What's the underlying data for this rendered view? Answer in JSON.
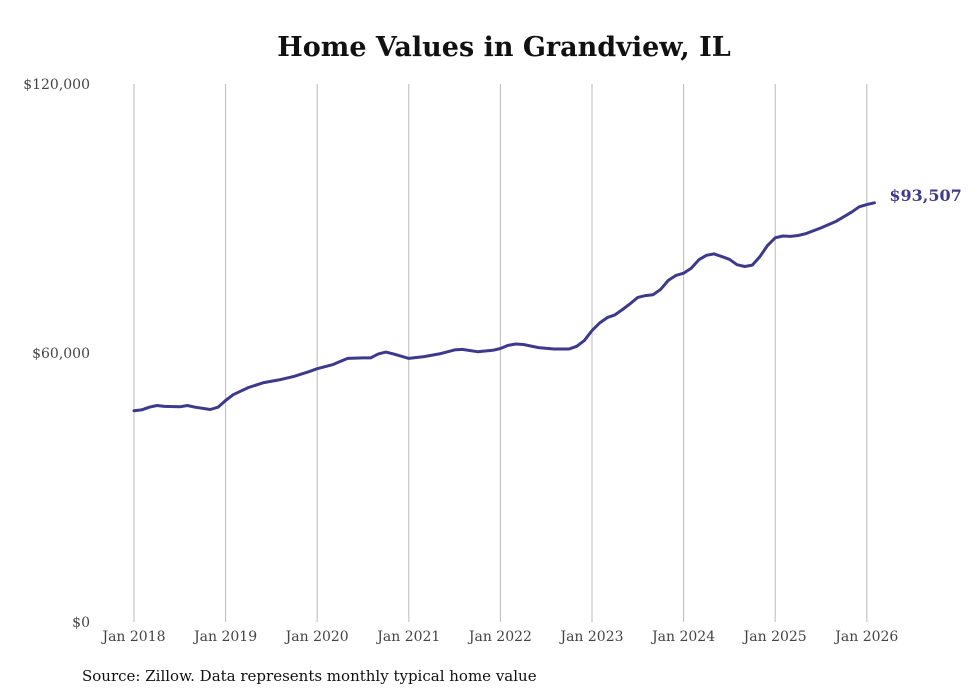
{
  "chart_data": {
    "type": "line",
    "title": "Home Values in Grandview, IL",
    "xlabel": "",
    "ylabel": "",
    "ylim": [
      0,
      120000
    ],
    "y_ticks": [
      {
        "value": 0,
        "label": "$0"
      },
      {
        "value": 60000,
        "label": "$60,000"
      },
      {
        "value": 120000,
        "label": "$120,000"
      }
    ],
    "x_ticks": [
      "Jan 2018",
      "Jan 2019",
      "Jan 2020",
      "Jan 2021",
      "Jan 2022",
      "Jan 2023",
      "Jan 2024",
      "Jan 2025",
      "Jan 2026"
    ],
    "vertical_gridlines": true,
    "series": [
      {
        "name": "Typical home value",
        "color": "#3d3a8c",
        "x": [
          2018.0,
          2018.083,
          2018.167,
          2018.25,
          2018.333,
          2018.5,
          2018.583,
          2018.667,
          2018.833,
          2018.917,
          2019.0,
          2019.083,
          2019.25,
          2019.417,
          2019.583,
          2019.75,
          2019.917,
          2020.0,
          2020.167,
          2020.25,
          2020.333,
          2020.5,
          2020.583,
          2020.667,
          2020.75,
          2020.833,
          2021.0,
          2021.167,
          2021.333,
          2021.5,
          2021.583,
          2021.75,
          2021.917,
          2022.0,
          2022.083,
          2022.167,
          2022.25,
          2022.417,
          2022.583,
          2022.75,
          2022.833,
          2022.917,
          2023.0,
          2023.083,
          2023.167,
          2023.25,
          2023.333,
          2023.417,
          2023.5,
          2023.583,
          2023.667,
          2023.75,
          2023.833,
          2023.917,
          2024.0,
          2024.083,
          2024.167,
          2024.25,
          2024.333,
          2024.417,
          2024.5,
          2024.583,
          2024.667,
          2024.75,
          2024.833,
          2024.917,
          2025.0,
          2025.083,
          2025.167,
          2025.25,
          2025.333,
          2025.5,
          2025.667,
          2025.833,
          2025.917,
          2026.0,
          2026.083
        ],
        "values": [
          47100,
          47300,
          47900,
          48300,
          48100,
          48000,
          48300,
          47900,
          47400,
          47900,
          49400,
          50700,
          52300,
          53400,
          54000,
          54800,
          55900,
          56500,
          57400,
          58100,
          58800,
          58900,
          58900,
          59800,
          60200,
          59800,
          58800,
          59200,
          59800,
          60700,
          60800,
          60300,
          60600,
          61000,
          61700,
          62000,
          61900,
          61200,
          60900,
          60900,
          61500,
          62800,
          65000,
          66700,
          67900,
          68500,
          69700,
          71000,
          72400,
          72800,
          73000,
          74200,
          76200,
          77300,
          77800,
          78900,
          80800,
          81800,
          82100,
          81500,
          80900,
          79700,
          79300,
          79600,
          81500,
          84000,
          85700,
          86100,
          86000,
          86200,
          86600,
          87900,
          89400,
          91400,
          92600,
          93100,
          93507
        ]
      }
    ],
    "end_label": "$93,507"
  },
  "source_note": "Source: Zillow. Data represents monthly typical home value"
}
